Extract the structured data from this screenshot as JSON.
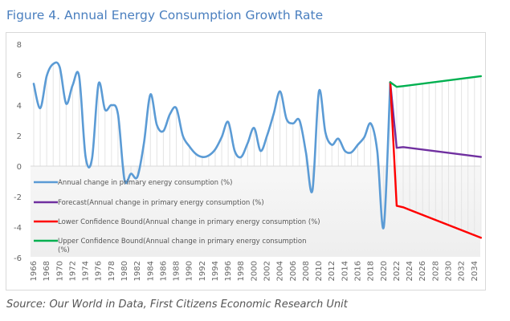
{
  "title": "Figure 4. Annual Energy Consumption Growth Rate",
  "source": "Source: Our World in Data, First Citizens Economic Research Unit",
  "chart_data": {
    "type": "line",
    "title": "Figure 4. Annual Energy Consumption Growth Rate",
    "xlabel": "",
    "ylabel": "",
    "ylim": [
      -6,
      8
    ],
    "xlim": [
      1966,
      2035
    ],
    "yticks": [
      8,
      6,
      4,
      2,
      0,
      -2,
      -4,
      -6
    ],
    "xticks": [
      "1966",
      "1968",
      "1970",
      "1972",
      "1974",
      "1976",
      "1978",
      "1980",
      "1982",
      "1984",
      "1986",
      "1988",
      "1990",
      "1992",
      "1994",
      "1996",
      "1998",
      "2000",
      "2002",
      "2004",
      "2006",
      "2008",
      "2010",
      "2012",
      "2014",
      "2016",
      "2018",
      "2020",
      "2022",
      "2024",
      "2026",
      "2028",
      "2030",
      "2032",
      "2034"
    ],
    "grid": "vertical drop lines per year",
    "legend_position": "bottom-left (inside plot)",
    "series": [
      {
        "name": "Annual change in primary energy consumption (%)",
        "color": "#5b9bd5",
        "x": [
          1966,
          1967,
          1968,
          1969,
          1970,
          1971,
          1972,
          1973,
          1974,
          1975,
          1976,
          1977,
          1978,
          1979,
          1980,
          1981,
          1982,
          1983,
          1984,
          1985,
          1986,
          1987,
          1988,
          1989,
          1990,
          1991,
          1992,
          1993,
          1994,
          1995,
          1996,
          1997,
          1998,
          1999,
          2000,
          2001,
          2002,
          2003,
          2004,
          2005,
          2006,
          2007,
          2008,
          2009,
          2010,
          2011,
          2012,
          2013,
          2014,
          2015,
          2016,
          2017,
          2018,
          2019,
          2020,
          2021
        ],
        "values": [
          5.4,
          3.8,
          5.9,
          6.7,
          6.5,
          4.1,
          5.3,
          5.9,
          0.6,
          0.5,
          5.4,
          3.7,
          4.0,
          3.4,
          -0.9,
          -0.5,
          -0.7,
          1.5,
          4.7,
          2.7,
          2.3,
          3.4,
          3.8,
          2.0,
          1.3,
          0.8,
          0.6,
          0.7,
          1.1,
          1.9,
          2.9,
          1.0,
          0.6,
          1.5,
          2.5,
          1.0,
          2.0,
          3.4,
          4.9,
          3.1,
          2.8,
          3.0,
          0.9,
          -1.6,
          4.9,
          2.2,
          1.4,
          1.8,
          1.0,
          0.9,
          1.4,
          1.9,
          2.8,
          1.0,
          -4.0,
          5.5
        ]
      },
      {
        "name": "Forecast(Annual change in primary energy consumption (%)",
        "color": "#7030a0",
        "x": [
          2021,
          2022,
          2023,
          2035
        ],
        "values": [
          5.5,
          1.2,
          1.25,
          0.6
        ]
      },
      {
        "name": "Lower Confidence Bound(Annual change in primary energy consumption (%)",
        "color": "#ff0000",
        "x": [
          2021,
          2022,
          2023,
          2035
        ],
        "values": [
          5.5,
          -2.6,
          -2.7,
          -4.7
        ]
      },
      {
        "name": "Upper Confidence Bound(Annual change in primary energy consumption (%)",
        "color": "#00b050",
        "x": [
          2021,
          2022,
          2023,
          2035
        ],
        "values": [
          5.5,
          5.2,
          5.25,
          5.9
        ]
      }
    ],
    "legend": [
      {
        "label": "Annual change in primary energy consumption (%)",
        "color": "#5b9bd5"
      },
      {
        "label": "Forecast(Annual change in primary energy consumption (%)",
        "color": "#7030a0"
      },
      {
        "label": "Lower Confidence Bound(Annual change in primary energy consumption (%)",
        "color": "#ff0000"
      },
      {
        "label": "Upper Confidence Bound(Annual change in primary energy consumption",
        "label2": "(%)",
        "color": "#00b050"
      }
    ]
  }
}
